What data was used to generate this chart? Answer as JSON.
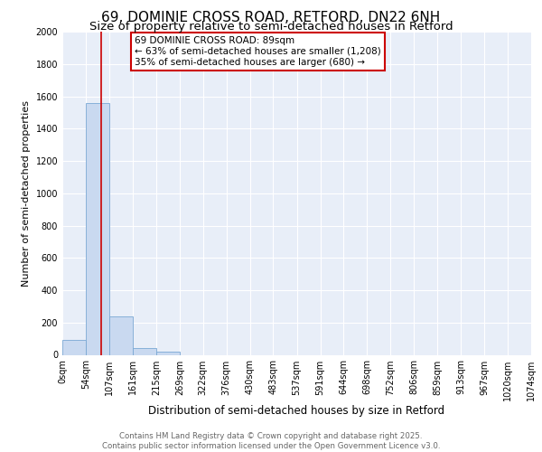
{
  "title_line1": "69, DOMINIE CROSS ROAD, RETFORD, DN22 6NH",
  "title_line2": "Size of property relative to semi-detached houses in Retford",
  "xlabel": "Distribution of semi-detached houses by size in Retford",
  "ylabel": "Number of semi-detached properties",
  "footer_line1": "Contains HM Land Registry data © Crown copyright and database right 2025.",
  "footer_line2": "Contains public sector information licensed under the Open Government Licence v3.0.",
  "annotation_line1": "69 DOMINIE CROSS ROAD: 89sqm",
  "annotation_line2": "← 63% of semi-detached houses are smaller (1,208)",
  "annotation_line3": "35% of semi-detached houses are larger (680) →",
  "property_size": 89,
  "bar_edges": [
    0,
    54,
    107,
    161,
    215,
    269,
    322,
    376,
    430,
    483,
    537,
    591,
    644,
    698,
    752,
    806,
    859,
    913,
    967,
    1020,
    1074
  ],
  "bar_heights": [
    95,
    1560,
    240,
    40,
    20,
    0,
    0,
    0,
    0,
    0,
    0,
    0,
    0,
    0,
    0,
    0,
    0,
    0,
    0,
    0
  ],
  "bar_color": "#c9d9f0",
  "bar_edge_color": "#7aa8d4",
  "vline_color": "#cc0000",
  "vline_x": 89,
  "ylim": [
    0,
    2000
  ],
  "yticks": [
    0,
    200,
    400,
    600,
    800,
    1000,
    1200,
    1400,
    1600,
    1800,
    2000
  ],
  "background_color": "#e8eef8",
  "grid_color": "#ffffff",
  "annotation_box_color": "#ffffff",
  "annotation_box_edge": "#cc0000",
  "title_fontsize": 11,
  "subtitle_fontsize": 9.5,
  "tick_label_fontsize": 7,
  "ylabel_fontsize": 8,
  "xlabel_fontsize": 8.5,
  "footer_fontsize": 6.2,
  "annotation_fontsize": 7.5
}
